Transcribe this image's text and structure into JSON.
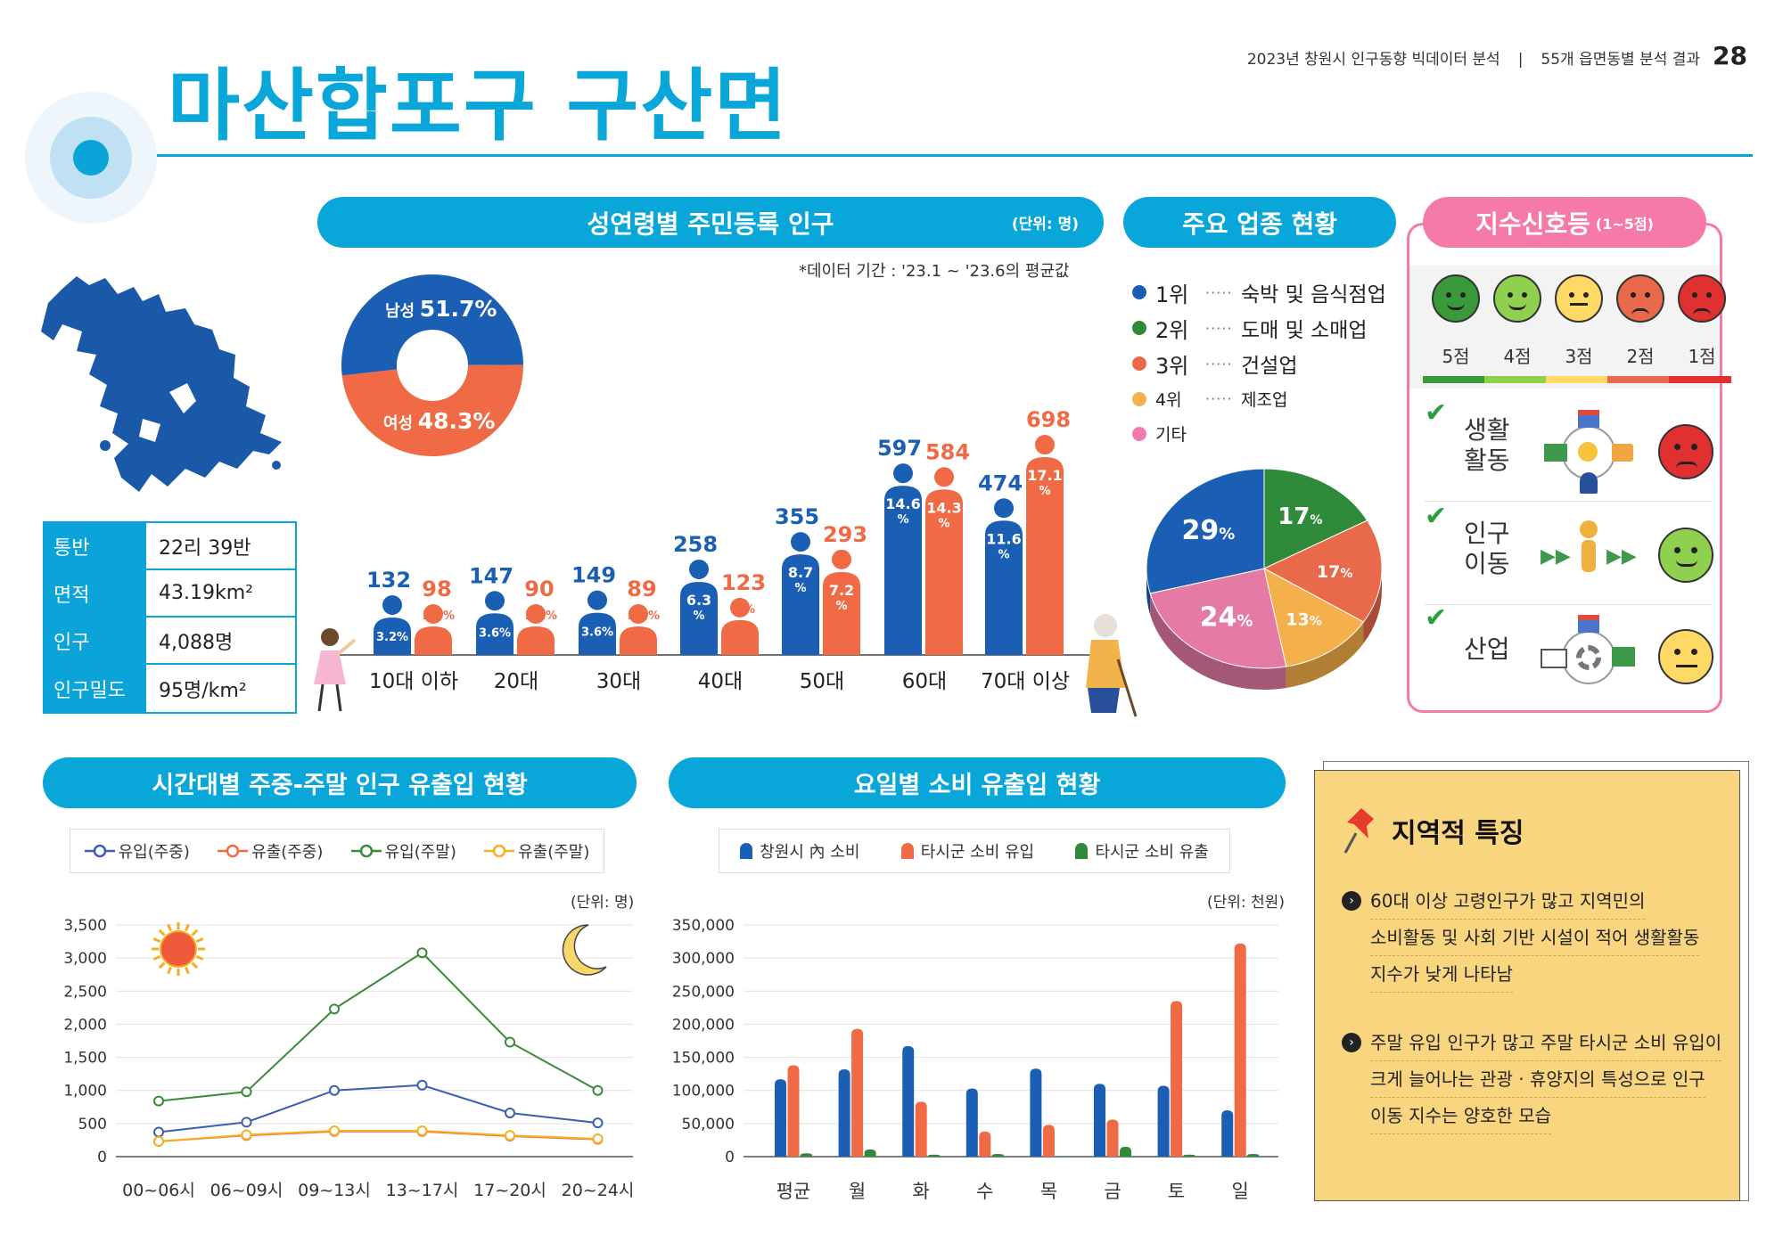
{
  "header": {
    "report_title": "2023년 창원시 인구동향 빅데이터 분석",
    "separator": "|",
    "section": "55개 읍면동별 분석 결과",
    "page_number": "28",
    "main_title": "마산합포구 구산면"
  },
  "region_info": [
    {
      "key": "통반",
      "value": "22리 39반"
    },
    {
      "key": "면적",
      "value": "43.19km²"
    },
    {
      "key": "인구",
      "value": "4,088명"
    },
    {
      "key": "인구밀도",
      "value": "95명/km²"
    }
  ],
  "age_panel": {
    "title": "성연령별 주민등록 인구",
    "unit": "(단위: 명)",
    "period_note": "*데이터 기간 : '23.1 ~ '23.6의 평균값",
    "male_label": "남성",
    "male_pct": "51.7%",
    "female_label": "여성",
    "female_pct": "48.3%"
  },
  "industry_panel": {
    "title": "주요 업종 현황",
    "ranks": [
      {
        "rank": "1위",
        "dots": "·····",
        "name": "숙박 및 음식점업",
        "color": "#1a5fb4"
      },
      {
        "rank": "2위",
        "dots": "·····",
        "name": "도매 및 소매업",
        "color": "#2f8a3a"
      },
      {
        "rank": "3위",
        "dots": "·····",
        "name": "건설업",
        "color": "#e86a4a"
      },
      {
        "rank": "4위",
        "dots": "·····",
        "name": "제조업",
        "color": "#f4b04a"
      },
      {
        "rank": "기타",
        "dots": "",
        "name": "",
        "color": "#f07ab0"
      }
    ]
  },
  "signal_panel": {
    "title": "지수신호등",
    "title_sub": "(1~5점)",
    "scores": [
      "5점",
      "4점",
      "3점",
      "2점",
      "1점"
    ],
    "score_colors": [
      "#3a9a3a",
      "#8fd14f",
      "#ffd966",
      "#e86a4a",
      "#e03030"
    ],
    "rows": [
      {
        "label_line1": "생활",
        "label_line2": "활동",
        "score_color": "#e03030",
        "icon": "store-network-icon"
      },
      {
        "label_line1": "인구",
        "label_line2": "이동",
        "score_color": "#8fd14f",
        "icon": "walking-person-icon"
      },
      {
        "label_line1": "산업",
        "label_line2": "",
        "score_color": "#ffd966",
        "icon": "factory-gear-icon"
      }
    ]
  },
  "time_panel": {
    "title": "시간대별 주중-주말 인구 유출입 현황",
    "unit": "(단위: 명)"
  },
  "day_panel": {
    "title": "요일별 소비 유출입 현황",
    "unit": "(단위: 천원)"
  },
  "features": {
    "title": "지역적 특징",
    "bullets": [
      [
        "60대 이상 고령인구가 많고 지역민의",
        "소비활동 및 사회 기반 시설이 적어 생활활동",
        "지수가 낮게 나타남"
      ],
      [
        "주말 유입 인구가 많고 주말 타시군 소비 유입이",
        "크게 늘어나는 관광 · 휴양지의 특성으로 인구",
        "이동 지수는 양호한 모습"
      ]
    ]
  },
  "chart_data": [
    {
      "id": "age",
      "type": "bar",
      "categories": [
        "10대 이하",
        "20대",
        "30대",
        "40대",
        "50대",
        "60대",
        "70대 이상"
      ],
      "series": [
        {
          "name": "남성",
          "values": [
            132,
            147,
            149,
            258,
            355,
            597,
            474
          ],
          "pct": [
            "3.2%",
            "3.6%",
            "3.6%",
            "6.3%",
            "8.7%",
            "14.6%",
            "11.6%"
          ],
          "color": "#1a5fb4"
        },
        {
          "name": "여성",
          "values": [
            98,
            90,
            89,
            123,
            293,
            584,
            698
          ],
          "pct": [
            "2.4%",
            "2.2%",
            "2.2%",
            "3%",
            "7.2%",
            "14.3%",
            "17.1%"
          ],
          "color": "#ef6a45"
        }
      ]
    },
    {
      "id": "gender",
      "type": "pie",
      "labels": [
        "남성",
        "여성"
      ],
      "values": [
        51.7,
        48.3
      ],
      "colors": [
        "#1a5fb4",
        "#ef6a45"
      ]
    },
    {
      "id": "industry",
      "type": "pie",
      "labels": [
        "1위",
        "2위",
        "3위",
        "4위",
        "기타"
      ],
      "values": [
        17,
        17,
        13,
        24,
        29
      ],
      "display": [
        "17%",
        "17%",
        "13%",
        "24%",
        "29%"
      ],
      "colors": [
        "#2f8a3a",
        "#e86a4a",
        "#f4b04a",
        "#e57aa4",
        "#1a5fb4"
      ]
    },
    {
      "id": "time",
      "type": "line",
      "categories": [
        "00~06시",
        "06~09시",
        "09~13시",
        "13~17시",
        "17~20시",
        "20~24시"
      ],
      "ylim": [
        0,
        3500
      ],
      "yticks": [
        "0",
        "500",
        "1,000",
        "1,500",
        "2,000",
        "2,500",
        "3,000",
        "3,500"
      ],
      "series": [
        {
          "name": "유입(주중)",
          "values": [
            370,
            520,
            1000,
            1080,
            660,
            510
          ],
          "color": "#3a5fb0"
        },
        {
          "name": "유출(주중)",
          "values": [
            230,
            320,
            380,
            380,
            310,
            260
          ],
          "color": "#f06a45"
        },
        {
          "name": "유입(주말)",
          "values": [
            840,
            980,
            2230,
            3080,
            1730,
            1000
          ],
          "color": "#3a8a3a"
        },
        {
          "name": "유출(주말)",
          "values": [
            230,
            330,
            390,
            390,
            320,
            270
          ],
          "color": "#f5b020"
        }
      ]
    },
    {
      "id": "day",
      "type": "bar",
      "categories": [
        "평균",
        "월",
        "화",
        "수",
        "목",
        "금",
        "토",
        "일"
      ],
      "ylim": [
        0,
        350000
      ],
      "yticks": [
        "0",
        "50,000",
        "100,000",
        "150,000",
        "200,000",
        "250,000",
        "300,000",
        "350,000"
      ],
      "series": [
        {
          "name": "창원시 內 소비",
          "values": [
            117000,
            132000,
            167000,
            103000,
            133000,
            110000,
            107000,
            70000
          ],
          "color": "#1a5fb4"
        },
        {
          "name": "타시군 소비 유입",
          "values": [
            138000,
            193000,
            83000,
            38000,
            48000,
            56000,
            235000,
            322000
          ],
          "color": "#ef6a45"
        },
        {
          "name": "타시군 소비 유출",
          "values": [
            5000,
            11000,
            3000,
            4000,
            1000,
            15000,
            3000,
            4000
          ],
          "color": "#2f8a3a"
        }
      ]
    }
  ]
}
